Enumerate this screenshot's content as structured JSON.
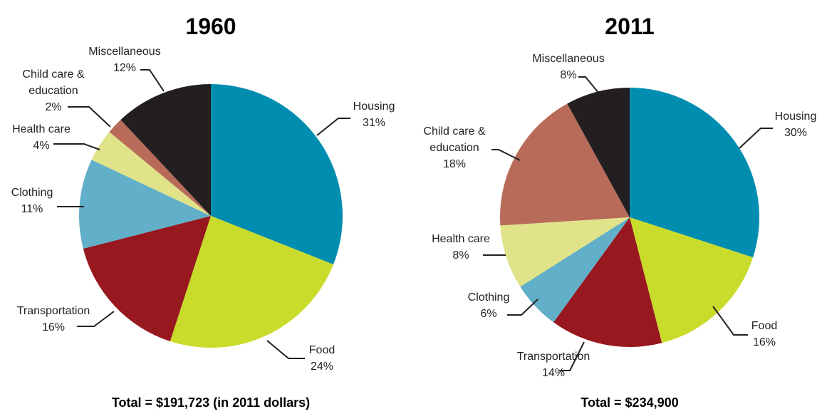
{
  "chart_data": [
    {
      "type": "pie",
      "title": "1960",
      "categories": [
        "Housing",
        "Food",
        "Transportation",
        "Clothing",
        "Health care",
        "Child care & education",
        "Miscellaneous"
      ],
      "values": [
        31,
        24,
        16,
        11,
        4,
        2,
        12
      ],
      "value_labels": [
        "31%",
        "24%",
        "16%",
        "11%",
        "4%",
        "2%",
        "12%"
      ],
      "colors": [
        "#008db0",
        "#c9dc2b",
        "#97181f",
        "#62afc9",
        "#e0e38a",
        "#b86b59",
        "#231f20"
      ],
      "footnote": "Total = $191,723 (in 2011 dollars)"
    },
    {
      "type": "pie",
      "title": "2011",
      "categories": [
        "Housing",
        "Food",
        "Transportation",
        "Clothing",
        "Health care",
        "Child care & education",
        "Miscellaneous"
      ],
      "values": [
        30,
        16,
        14,
        6,
        8,
        18,
        8
      ],
      "value_labels": [
        "30%",
        "16%",
        "14%",
        "6%",
        "8%",
        "18%",
        "8%"
      ],
      "colors": [
        "#008db0",
        "#c9dc2b",
        "#97181f",
        "#62afc9",
        "#e0e38a",
        "#b86b59",
        "#231f20"
      ],
      "footnote": "Total = $234,900"
    }
  ]
}
